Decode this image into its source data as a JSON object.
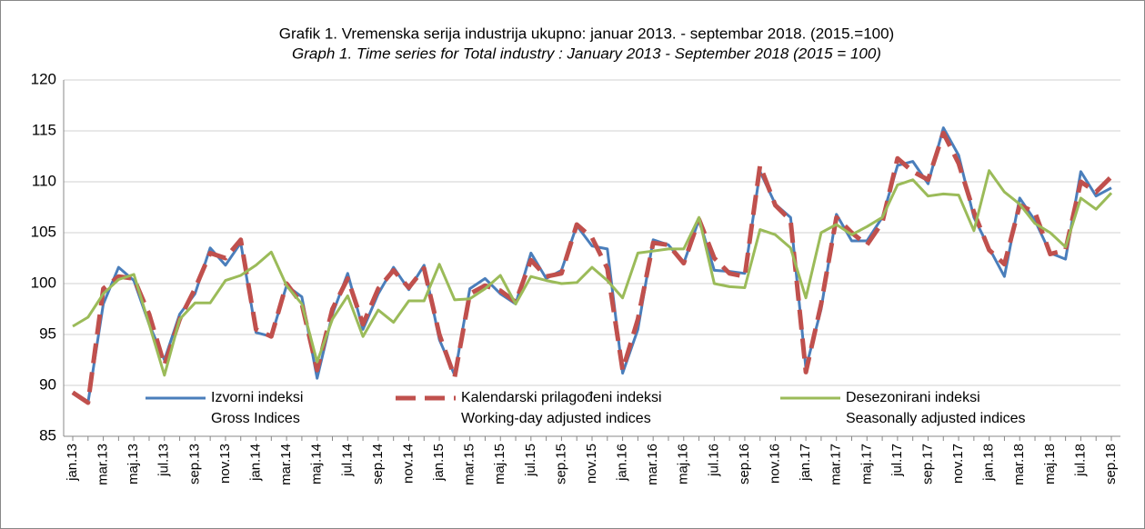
{
  "chart_data": {
    "type": "line",
    "title": "Grafik 1. Vremenska serija industrija ukupno: januar 2013. - septembar 2018. (2015.=100)",
    "subtitle": "Graph 1. Time series for Total industry : January 2013 - September 2018 (2015 = 100)",
    "categories": [
      "jan.13",
      null,
      "mar.13",
      null,
      "maj.13",
      null,
      "jul.13",
      null,
      "sep.13",
      null,
      "nov.13",
      null,
      "jan.14",
      null,
      "mar.14",
      null,
      "maj.14",
      null,
      "jul.14",
      null,
      "sep.14",
      null,
      "nov.14",
      null,
      "jan.15",
      null,
      "mar.15",
      null,
      "maj.15",
      null,
      "jul.15",
      null,
      "sep.15",
      null,
      "nov.15",
      null,
      "jan.16",
      null,
      "mar.16",
      null,
      "maj.16",
      null,
      "jul.16",
      null,
      "sep.16",
      null,
      "nov.16",
      null,
      "jan.17",
      null,
      "mar.17",
      null,
      "maj.17",
      null,
      "jul.17",
      null,
      "sep.17",
      null,
      "nov.17",
      null,
      "jan.18",
      null,
      "mar.18",
      null,
      "maj.18",
      null,
      "jul.18",
      null,
      "sep.18"
    ],
    "series": [
      {
        "name": "Izvorni indeksi",
        "name_en": "Gross Indices",
        "color": "#4a7ebb",
        "dash": false,
        "values": [
          89.3,
          88.3,
          98,
          101.6,
          100.3,
          96,
          92.5,
          97,
          99,
          103.5,
          101.8,
          104,
          95.2,
          94.8,
          99.8,
          98.7,
          90.7,
          97,
          101,
          95.5,
          99,
          101.6,
          99.4,
          101.8,
          94.5,
          91,
          99.5,
          100.5,
          99,
          98,
          103,
          100.5,
          101.3,
          105.7,
          103.7,
          103.4,
          91.2,
          95.5,
          104.3,
          103.8,
          102,
          106.3,
          101.3,
          101.2,
          101,
          111,
          107.8,
          106.5,
          91.7,
          97.5,
          106.8,
          104.2,
          104.2,
          106.5,
          111.6,
          112,
          109.8,
          115.3,
          112.6,
          106.5,
          103.5,
          100.7,
          108.4,
          106.2,
          103,
          102.4,
          111,
          108.6,
          109.4
        ]
      },
      {
        "name": "Kalendarski prilagođeni indeksi",
        "name_en": "Working-day adjusted indices",
        "color": "#c0504d",
        "dash": true,
        "values": [
          89.3,
          88.3,
          99.5,
          100.7,
          100.5,
          97,
          92,
          96.5,
          99.5,
          103,
          102.5,
          104.3,
          95.5,
          94.8,
          100,
          98,
          91.5,
          97.5,
          100.5,
          96,
          99.5,
          101.3,
          99.6,
          101.5,
          95,
          90.8,
          99,
          99.8,
          99.3,
          98.2,
          102.3,
          100.7,
          101,
          105.8,
          104.5,
          101.5,
          91.5,
          96.5,
          104,
          103.8,
          102,
          106.3,
          102.5,
          101,
          100.7,
          111.6,
          107.7,
          106.2,
          91.3,
          98,
          106.5,
          105,
          103.8,
          106,
          112.3,
          111,
          110.2,
          114.8,
          111.8,
          107,
          103.3,
          101.9,
          107.7,
          107,
          102.9,
          103.3,
          110,
          109,
          110.5
        ]
      },
      {
        "name": "Desezonirani indeksi",
        "name_en": "Seasonally adjusted indices",
        "color": "#9bbb59",
        "dash": false,
        "values": [
          95.8,
          96.7,
          99,
          100.4,
          100.9,
          96,
          91,
          96.5,
          98.1,
          98.1,
          100.3,
          100.8,
          101.8,
          103.1,
          99.8,
          98,
          92.3,
          96.5,
          98.8,
          94.8,
          97.4,
          96.2,
          98.3,
          98.3,
          101.9,
          98.4,
          98.5,
          99.5,
          100.8,
          98,
          100.7,
          100.3,
          100,
          100.1,
          101.6,
          100.3,
          98.6,
          103,
          103.2,
          103.4,
          103.4,
          106.5,
          100,
          99.7,
          99.6,
          105.3,
          104.8,
          103.5,
          98.6,
          105,
          105.8,
          104.8,
          105.6,
          106.5,
          109.7,
          110.2,
          108.6,
          108.8,
          108.7,
          105.2,
          111.1,
          109,
          107.8,
          105.9,
          105,
          103.6,
          108.4,
          107.3,
          108.9
        ]
      }
    ],
    "ylim": [
      85,
      120
    ],
    "yticks": [
      85,
      90,
      95,
      100,
      105,
      110,
      115,
      120
    ],
    "grid": true
  }
}
